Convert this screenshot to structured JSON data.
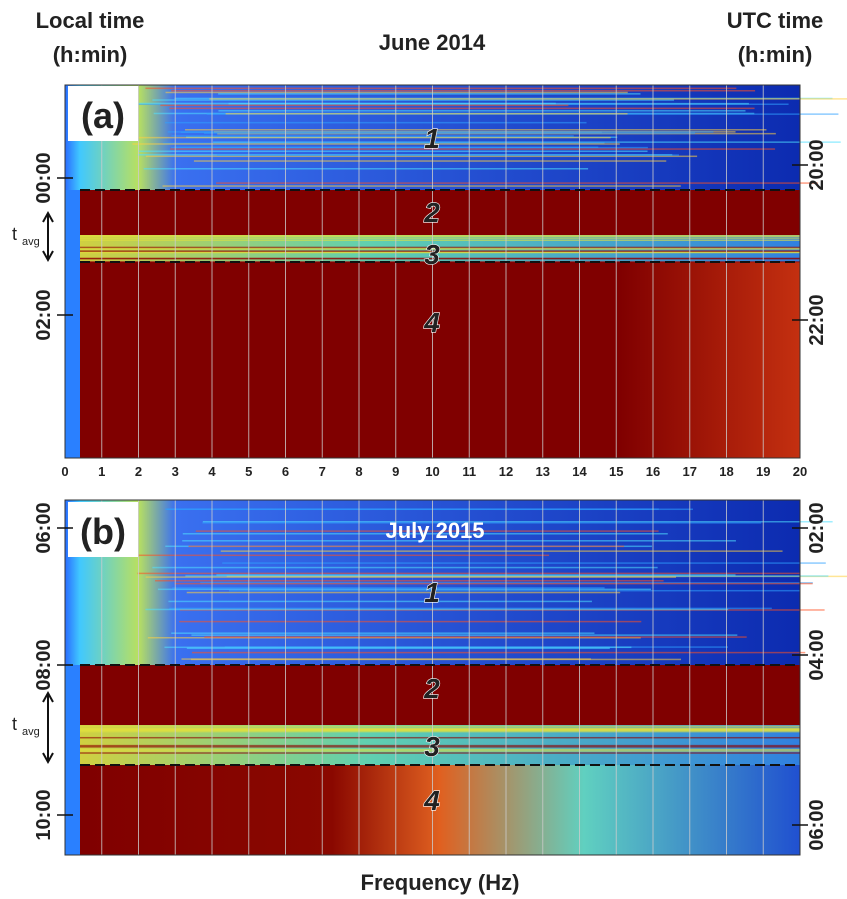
{
  "left_label": [
    "Local time",
    "(h:min)"
  ],
  "right_label": [
    "UTC time",
    "(h:min)"
  ],
  "x_label": "Frequency (Hz)",
  "freq_ticks": [
    "0",
    "1",
    "2",
    "3",
    "4",
    "5",
    "6",
    "7",
    "8",
    "9",
    "10",
    "11",
    "12",
    "13",
    "14",
    "15",
    "16",
    "17",
    "18",
    "19",
    "20"
  ],
  "panels": [
    {
      "label": "(a)",
      "title": "June 2014",
      "left_ticks": [
        "00:00",
        "02:00"
      ],
      "right_ticks": [
        "20:00",
        "22:00"
      ],
      "regions": [
        "1",
        "2",
        "3",
        "4"
      ],
      "tavg": "t",
      "tavg_sub": "avg"
    },
    {
      "label": "(b)",
      "title": "July 2015",
      "left_ticks": [
        "06:00",
        "08:00",
        "10:00"
      ],
      "right_ticks": [
        "02:00",
        "04:00",
        "06:00"
      ],
      "regions": [
        "1",
        "2",
        "3",
        "4"
      ],
      "tavg": "t",
      "tavg_sub": "avg"
    }
  ]
}
